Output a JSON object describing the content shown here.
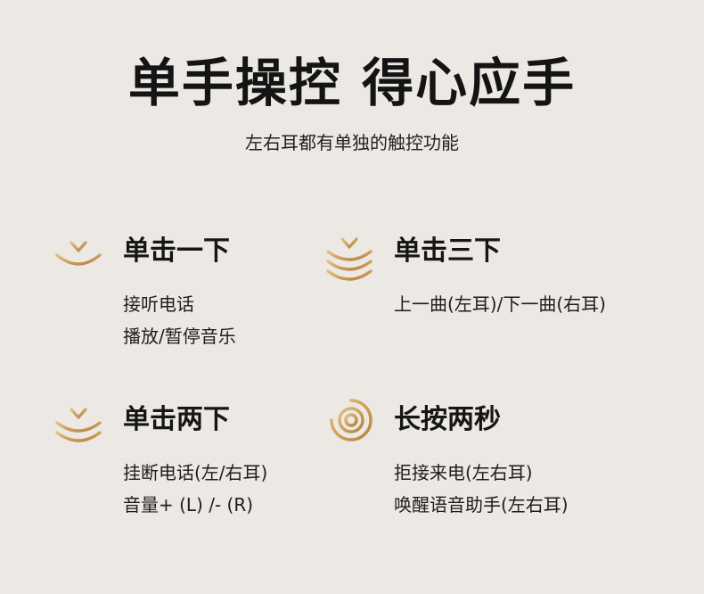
{
  "title": "单手操控 得心应手",
  "subtitle": "左右耳都有单独的触控功能",
  "accent_color": "#c79a52",
  "cards": [
    {
      "icon": "single-tap-icon",
      "heading": "单击一下",
      "lines": [
        "接听电话",
        "播放/暂停音乐"
      ]
    },
    {
      "icon": "triple-tap-icon",
      "heading": "单击三下",
      "lines": [
        "上一曲(左耳)/下一曲(右耳)"
      ]
    },
    {
      "icon": "double-tap-icon",
      "heading": "单击两下",
      "lines": [
        "挂断电话(左/右耳)",
        "音量+ (L) /- (R)"
      ]
    },
    {
      "icon": "long-press-icon",
      "heading": "长按两秒",
      "lines": [
        "拒接来电(左右耳)",
        "唤醒语音助手(左右耳)"
      ]
    }
  ]
}
